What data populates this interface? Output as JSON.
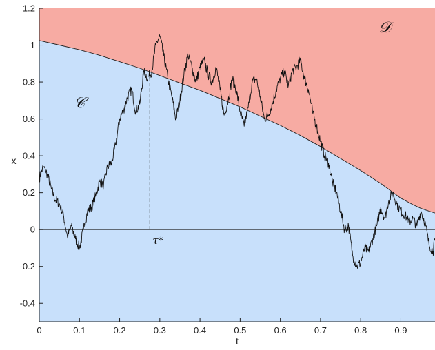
{
  "chart_data": {
    "type": "line",
    "xlabel": "t",
    "ylabel": "x",
    "xlim": [
      0,
      0.985
    ],
    "ylim": [
      -0.5,
      1.2
    ],
    "xticks": [
      "0",
      "0.1",
      "0.2",
      "0.3",
      "0.4",
      "0.5",
      "0.6",
      "0.7",
      "0.8",
      "0.9"
    ],
    "xtick_values": [
      0,
      0.1,
      0.2,
      0.3,
      0.4,
      0.5,
      0.6,
      0.7,
      0.8,
      0.9
    ],
    "yticks": [
      "-0.4",
      "-0.2",
      "0",
      "0.2",
      "0.4",
      "0.6",
      "0.8",
      "1",
      "1.2"
    ],
    "ytick_values": [
      -0.4,
      -0.2,
      0,
      0.2,
      0.4,
      0.6,
      0.8,
      1,
      1.2
    ],
    "grid": false,
    "colors": {
      "continuation_region": "#c8e0fb",
      "stopping_region": "#f7aba3",
      "path": "#111111"
    },
    "regions": [
      {
        "label": "𝒞",
        "x": 0.1,
        "y": 0.66
      },
      {
        "label": "𝒟",
        "x": 0.86,
        "y": 1.07
      }
    ],
    "boundary": {
      "x": [
        0,
        0.05,
        0.1,
        0.15,
        0.2,
        0.25,
        0.3,
        0.35,
        0.4,
        0.45,
        0.5,
        0.55,
        0.6,
        0.65,
        0.7,
        0.75,
        0.8,
        0.85,
        0.9,
        0.93,
        0.95,
        0.97,
        0.985
      ],
      "y": [
        1.025,
        1.0,
        0.975,
        0.945,
        0.91,
        0.875,
        0.835,
        0.795,
        0.755,
        0.71,
        0.665,
        0.615,
        0.565,
        0.51,
        0.45,
        0.385,
        0.32,
        0.25,
        0.17,
        0.135,
        0.115,
        0.1,
        0.09
      ]
    },
    "zero_line": 0,
    "stopping_time": {
      "label": "τ*",
      "x": 0.275,
      "y": 0.83
    },
    "path": {
      "x": [
        0,
        0.01,
        0.02,
        0.03,
        0.04,
        0.05,
        0.06,
        0.07,
        0.08,
        0.09,
        0.1,
        0.11,
        0.12,
        0.13,
        0.14,
        0.15,
        0.16,
        0.17,
        0.18,
        0.19,
        0.2,
        0.21,
        0.22,
        0.23,
        0.24,
        0.25,
        0.26,
        0.27,
        0.28,
        0.29,
        0.3,
        0.31,
        0.32,
        0.33,
        0.34,
        0.35,
        0.36,
        0.37,
        0.38,
        0.39,
        0.4,
        0.41,
        0.42,
        0.43,
        0.44,
        0.45,
        0.46,
        0.47,
        0.48,
        0.49,
        0.5,
        0.51,
        0.52,
        0.53,
        0.54,
        0.55,
        0.56,
        0.57,
        0.58,
        0.59,
        0.6,
        0.61,
        0.62,
        0.63,
        0.64,
        0.65,
        0.66,
        0.67,
        0.68,
        0.69,
        0.7,
        0.71,
        0.72,
        0.73,
        0.74,
        0.75,
        0.76,
        0.77,
        0.78,
        0.79,
        0.8,
        0.81,
        0.82,
        0.83,
        0.84,
        0.85,
        0.86,
        0.87,
        0.88,
        0.89,
        0.9,
        0.91,
        0.92,
        0.93,
        0.94,
        0.95,
        0.96,
        0.97,
        0.98,
        0.985
      ],
      "y": [
        0.28,
        0.34,
        0.3,
        0.22,
        0.16,
        0.14,
        0.08,
        -0.04,
        0.02,
        -0.05,
        -0.1,
        0.0,
        0.1,
        0.12,
        0.18,
        0.26,
        0.24,
        0.34,
        0.36,
        0.46,
        0.6,
        0.65,
        0.72,
        0.76,
        0.64,
        0.68,
        0.86,
        0.82,
        0.86,
        1.0,
        1.05,
        0.94,
        0.82,
        0.72,
        0.6,
        0.7,
        0.84,
        0.95,
        0.88,
        0.8,
        0.88,
        0.92,
        0.84,
        0.8,
        0.88,
        0.76,
        0.62,
        0.7,
        0.82,
        0.76,
        0.64,
        0.56,
        0.66,
        0.8,
        0.82,
        0.72,
        0.6,
        0.62,
        0.68,
        0.76,
        0.82,
        0.86,
        0.78,
        0.86,
        0.88,
        0.92,
        0.82,
        0.76,
        0.64,
        0.56,
        0.48,
        0.4,
        0.36,
        0.26,
        0.2,
        0.1,
        0.0,
        0.02,
        -0.14,
        -0.2,
        -0.18,
        -0.1,
        -0.12,
        -0.05,
        0.02,
        0.12,
        0.06,
        0.16,
        0.2,
        0.14,
        0.1,
        0.08,
        0.04,
        0.06,
        0.02,
        0.1,
        0.04,
        -0.08,
        -0.12,
        -0.05
      ]
    }
  }
}
